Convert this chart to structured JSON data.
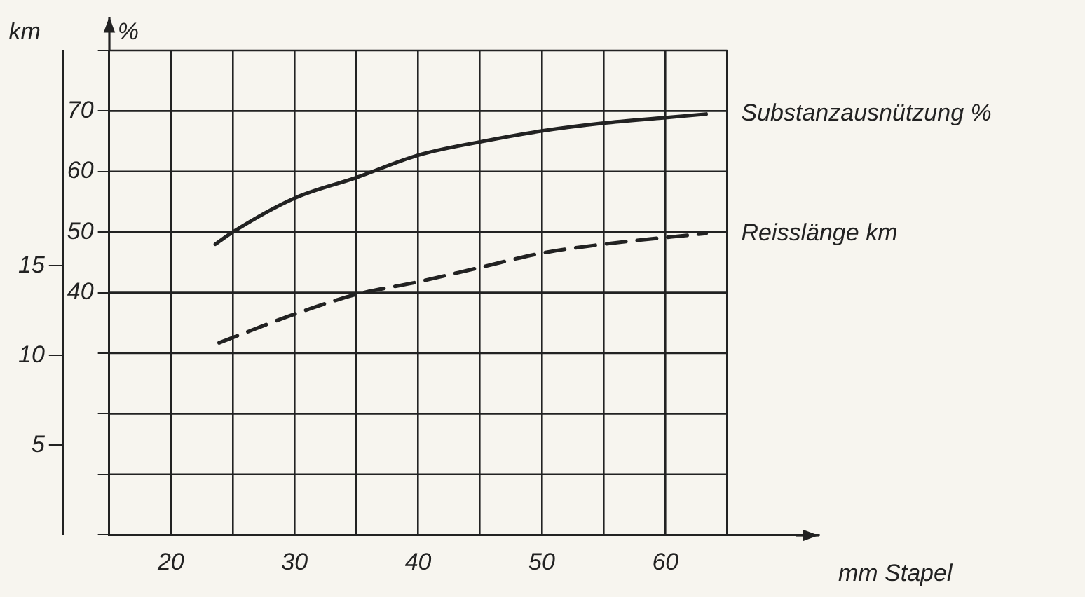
{
  "chart_data": {
    "type": "line",
    "xlabel": "mm Stapel",
    "ylabel": "km",
    "y2label": "%",
    "xlim": [
      15,
      72.4
    ],
    "xticks": [
      {
        "value": 15,
        "label": null
      },
      20,
      {
        "value": 25,
        "label": null
      },
      30,
      {
        "value": 35,
        "label": null
      },
      40,
      {
        "value": 45,
        "label": null
      },
      50,
      {
        "value": 55,
        "label": null
      },
      60,
      {
        "value": 65,
        "label": null
      }
    ],
    "ylim": [
      0,
      27
    ],
    "yticks": [
      5,
      10,
      15
    ],
    "y2lim": [
      0,
      80
    ],
    "y2ticks": [
      {
        "value": 0,
        "label": null
      },
      {
        "value": 10,
        "label": null
      },
      {
        "value": 20,
        "label": null
      },
      {
        "value": 30,
        "label": null
      },
      40,
      50,
      60,
      70,
      {
        "value": 80,
        "label": null
      }
    ],
    "grid": true,
    "legend": false,
    "marker": "none",
    "series": [
      {
        "name": "Substanzausnützung %",
        "color": "#222222",
        "line_style": "solid",
        "axis": "y2",
        "x": [
          23.6,
          25,
          30,
          35,
          40,
          45,
          50,
          55,
          60,
          63.3
        ],
        "values": [
          48,
          50,
          55.6,
          59,
          62.7,
          64.9,
          66.7,
          68,
          68.9,
          69.5
        ]
      },
      {
        "name": "Reisslänge km",
        "color": "#222222",
        "line_style": "dashed",
        "x": [
          23.9,
          30,
          35,
          40,
          45,
          50,
          55,
          63.3
        ],
        "values": [
          10.7,
          12.3,
          13.4,
          14.1,
          14.9,
          15.7,
          16.2,
          16.8
        ]
      }
    ]
  }
}
